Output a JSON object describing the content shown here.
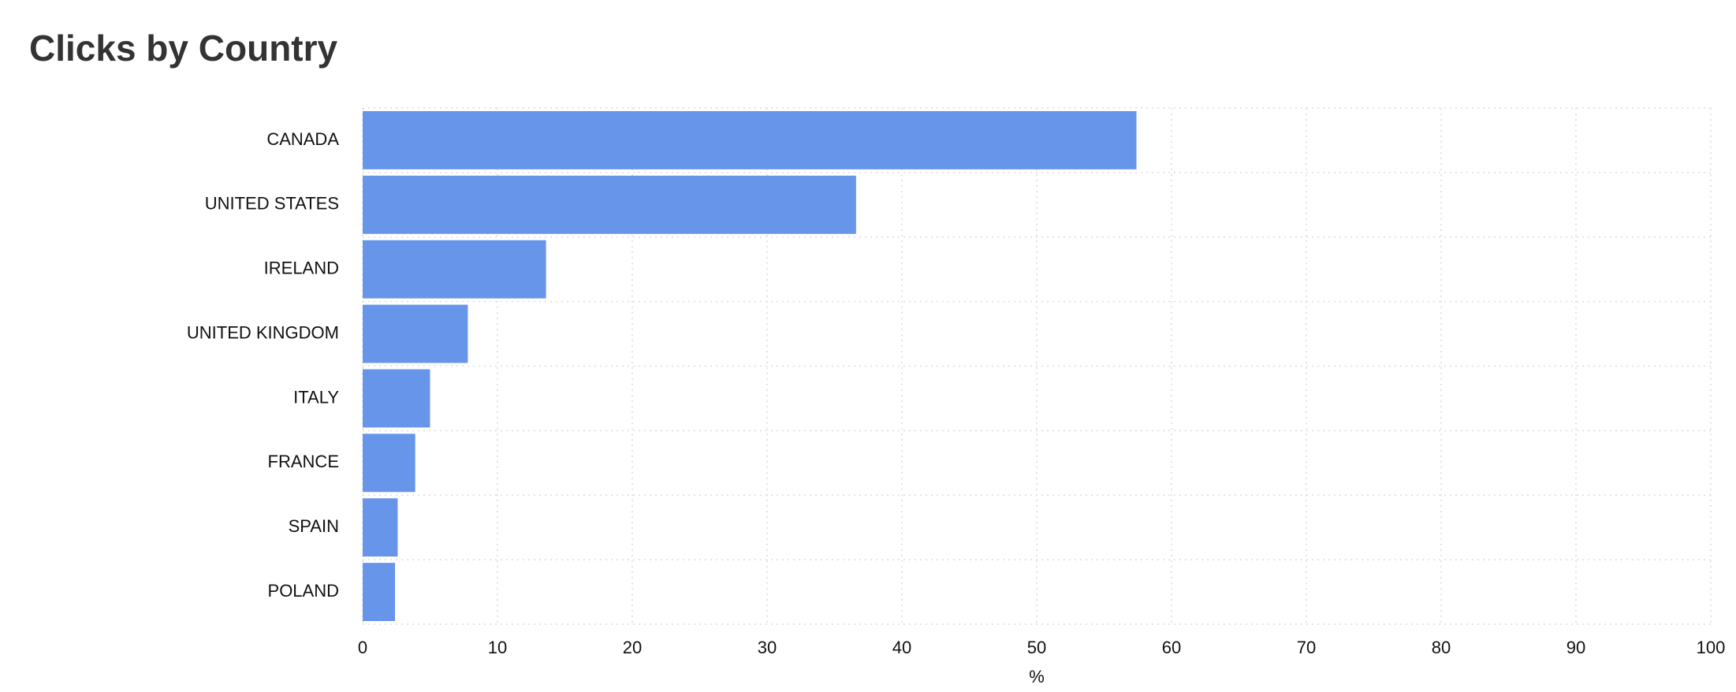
{
  "chart_data": {
    "type": "bar",
    "orientation": "horizontal",
    "title": "Clicks by Country",
    "categories": [
      "CANADA",
      "UNITED STATES",
      "IRELAND",
      "UNITED KINGDOM",
      "ITALY",
      "FRANCE",
      "SPAIN",
      "POLAND"
    ],
    "values": [
      57.4,
      36.6,
      13.6,
      7.8,
      5.0,
      3.9,
      2.6,
      2.4
    ],
    "color": "#6795ea",
    "x_label": "%",
    "xlim": [
      0,
      100
    ],
    "xticks": [
      0,
      10,
      20,
      30,
      40,
      50,
      60,
      70,
      80,
      90,
      100
    ],
    "grid": true
  }
}
